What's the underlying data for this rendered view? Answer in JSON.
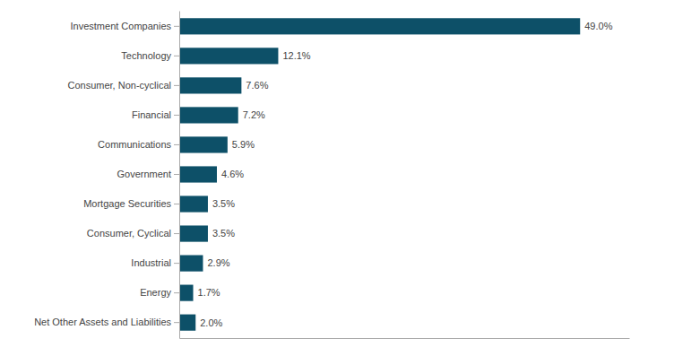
{
  "chart_data": {
    "type": "bar",
    "orientation": "horizontal",
    "categories": [
      "Investment Companies",
      "Technology",
      "Consumer, Non-cyclical",
      "Financial",
      "Communications",
      "Government",
      "Mortgage Securities",
      "Consumer, Cyclical",
      "Industrial",
      "Energy",
      "Net Other Assets and Liabilities"
    ],
    "values": [
      49.0,
      12.1,
      7.6,
      7.2,
      5.9,
      4.6,
      3.5,
      3.5,
      2.9,
      1.7,
      2.0
    ],
    "value_labels": [
      "49.0%",
      "12.1%",
      "7.6%",
      "7.2%",
      "5.9%",
      "4.6%",
      "3.5%",
      "3.5%",
      "2.9%",
      "1.7%",
      "2.0%"
    ],
    "color": "#0d5068",
    "xlim": [
      0,
      55
    ],
    "data_labels": true,
    "tick_labels": "y",
    "grid": false
  }
}
